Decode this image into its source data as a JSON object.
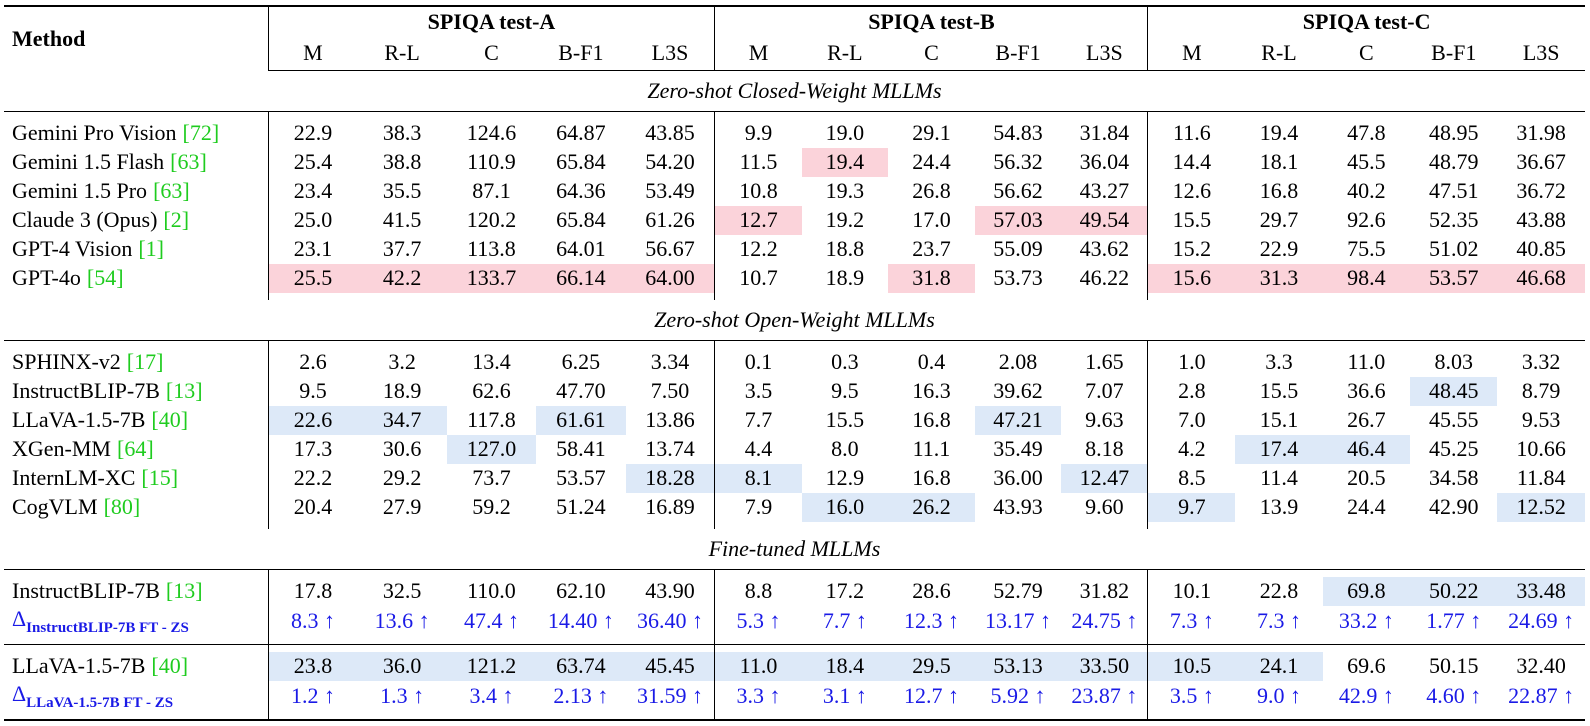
{
  "header": {
    "method": "Method",
    "groups": [
      "SPIQA test-A",
      "SPIQA test-B",
      "SPIQA test-C"
    ],
    "metrics": [
      "M",
      "R-L",
      "C",
      "B-F1",
      "L3S"
    ]
  },
  "sections": [
    {
      "title": "Zero-shot Closed-Weight MLLMs",
      "highlight_color": "#fbd3da",
      "rows": [
        {
          "method": "Gemini Pro Vision",
          "ref": "[72]",
          "cells": [
            "22.9",
            "38.3",
            "124.6",
            "64.87",
            "43.85",
            "9.9",
            "19.0",
            "29.1",
            "54.83",
            "31.84",
            "11.6",
            "19.4",
            "47.8",
            "48.95",
            "31.98"
          ],
          "highlight": []
        },
        {
          "method": "Gemini 1.5 Flash",
          "ref": "[63]",
          "cells": [
            "25.4",
            "38.8",
            "110.9",
            "65.84",
            "54.20",
            "11.5",
            "19.4",
            "24.4",
            "56.32",
            "36.04",
            "14.4",
            "18.1",
            "45.5",
            "48.79",
            "36.67"
          ],
          "highlight": [
            6
          ]
        },
        {
          "method": "Gemini 1.5 Pro",
          "ref": "[63]",
          "cells": [
            "23.4",
            "35.5",
            "87.1",
            "64.36",
            "53.49",
            "10.8",
            "19.3",
            "26.8",
            "56.62",
            "43.27",
            "12.6",
            "16.8",
            "40.2",
            "47.51",
            "36.72"
          ],
          "highlight": []
        },
        {
          "method": "Claude 3 (Opus)",
          "ref": "[2]",
          "cells": [
            "25.0",
            "41.5",
            "120.2",
            "65.84",
            "61.26",
            "12.7",
            "19.2",
            "17.0",
            "57.03",
            "49.54",
            "15.5",
            "29.7",
            "92.6",
            "52.35",
            "43.88"
          ],
          "highlight": [
            5,
            8,
            9
          ]
        },
        {
          "method": "GPT-4 Vision",
          "ref": "[1]",
          "cells": [
            "23.1",
            "37.7",
            "113.8",
            "64.01",
            "56.67",
            "12.2",
            "18.8",
            "23.7",
            "55.09",
            "43.62",
            "15.2",
            "22.9",
            "75.5",
            "51.02",
            "40.85"
          ],
          "highlight": []
        },
        {
          "method": "GPT-4o",
          "ref": "[54]",
          "cells": [
            "25.5",
            "42.2",
            "133.7",
            "66.14",
            "64.00",
            "10.7",
            "18.9",
            "31.8",
            "53.73",
            "46.22",
            "15.6",
            "31.3",
            "98.4",
            "53.57",
            "46.68"
          ],
          "highlight": [
            0,
            1,
            2,
            3,
            4,
            7,
            10,
            11,
            12,
            13,
            14
          ]
        }
      ]
    },
    {
      "title": "Zero-shot Open-Weight MLLMs",
      "highlight_color": "#dde9f8",
      "rows": [
        {
          "method": "SPHINX-v2",
          "ref": "[17]",
          "cells": [
            "2.6",
            "3.2",
            "13.4",
            "6.25",
            "3.34",
            "0.1",
            "0.3",
            "0.4",
            "2.08",
            "1.65",
            "1.0",
            "3.3",
            "11.0",
            "8.03",
            "3.32"
          ],
          "highlight": []
        },
        {
          "method": "InstructBLIP-7B",
          "ref": "[13]",
          "cells": [
            "9.5",
            "18.9",
            "62.6",
            "47.70",
            "7.50",
            "3.5",
            "9.5",
            "16.3",
            "39.62",
            "7.07",
            "2.8",
            "15.5",
            "36.6",
            "48.45",
            "8.79"
          ],
          "highlight": [
            13
          ]
        },
        {
          "method": "LLaVA-1.5-7B",
          "ref": "[40]",
          "cells": [
            "22.6",
            "34.7",
            "117.8",
            "61.61",
            "13.86",
            "7.7",
            "15.5",
            "16.8",
            "47.21",
            "9.63",
            "7.0",
            "15.1",
            "26.7",
            "45.55",
            "9.53"
          ],
          "highlight": [
            0,
            1,
            3,
            8
          ]
        },
        {
          "method": "XGen-MM",
          "ref": "[64]",
          "cells": [
            "17.3",
            "30.6",
            "127.0",
            "58.41",
            "13.74",
            "4.4",
            "8.0",
            "11.1",
            "35.49",
            "8.18",
            "4.2",
            "17.4",
            "46.4",
            "45.25",
            "10.66"
          ],
          "highlight": [
            2,
            11,
            12
          ]
        },
        {
          "method": "InternLM-XC",
          "ref": "[15]",
          "cells": [
            "22.2",
            "29.2",
            "73.7",
            "53.57",
            "18.28",
            "8.1",
            "12.9",
            "16.8",
            "36.00",
            "12.47",
            "8.5",
            "11.4",
            "20.5",
            "34.58",
            "11.84"
          ],
          "highlight": [
            4,
            5,
            9
          ]
        },
        {
          "method": "CogVLM",
          "ref": "[80]",
          "cells": [
            "20.4",
            "27.9",
            "59.2",
            "51.24",
            "16.89",
            "7.9",
            "16.0",
            "26.2",
            "43.93",
            "9.60",
            "9.7",
            "13.9",
            "24.4",
            "42.90",
            "12.52"
          ],
          "highlight": [
            6,
            7,
            10,
            14
          ]
        }
      ]
    },
    {
      "title": "Fine-tuned MLLMs",
      "highlight_color": "#dde9f8",
      "rows": [
        {
          "method": "InstructBLIP-7B",
          "ref": "[13]",
          "cells": [
            "17.8",
            "32.5",
            "110.0",
            "62.10",
            "43.90",
            "8.8",
            "17.2",
            "28.6",
            "52.79",
            "31.82",
            "10.1",
            "22.8",
            "69.8",
            "50.22",
            "33.48"
          ],
          "highlight": [
            12,
            13,
            14
          ]
        },
        {
          "delta": "Δ",
          "subscript": "InstructBLIP-7B FT - ZS",
          "cells": [
            "8.3 ↑",
            "13.6 ↑",
            "47.4 ↑",
            "14.40 ↑",
            "36.40 ↑",
            "5.3 ↑",
            "7.7 ↑",
            "12.3 ↑",
            "13.17 ↑",
            "24.75 ↑",
            "7.3 ↑",
            "7.3 ↑",
            "33.2 ↑",
            "1.77 ↑",
            "24.69 ↑"
          ],
          "highlight": []
        },
        {
          "method": "LLaVA-1.5-7B",
          "ref": "[40]",
          "cells": [
            "23.8",
            "36.0",
            "121.2",
            "63.74",
            "45.45",
            "11.0",
            "18.4",
            "29.5",
            "53.13",
            "33.50",
            "10.5",
            "24.1",
            "69.6",
            "50.15",
            "32.40"
          ],
          "highlight": [
            0,
            1,
            2,
            3,
            4,
            5,
            6,
            7,
            8,
            9,
            10,
            11
          ]
        },
        {
          "delta": "Δ",
          "subscript": "LLaVA-1.5-7B FT - ZS",
          "cells": [
            "1.2 ↑",
            "1.3 ↑",
            "3.4 ↑",
            "2.13 ↑",
            "31.59 ↑",
            "3.3 ↑",
            "3.1 ↑",
            "12.7 ↑",
            "5.92 ↑",
            "23.87 ↑",
            "3.5 ↑",
            "9.0 ↑",
            "42.9 ↑",
            "4.60 ↑",
            "22.87 ↑"
          ],
          "highlight": []
        }
      ]
    }
  ]
}
